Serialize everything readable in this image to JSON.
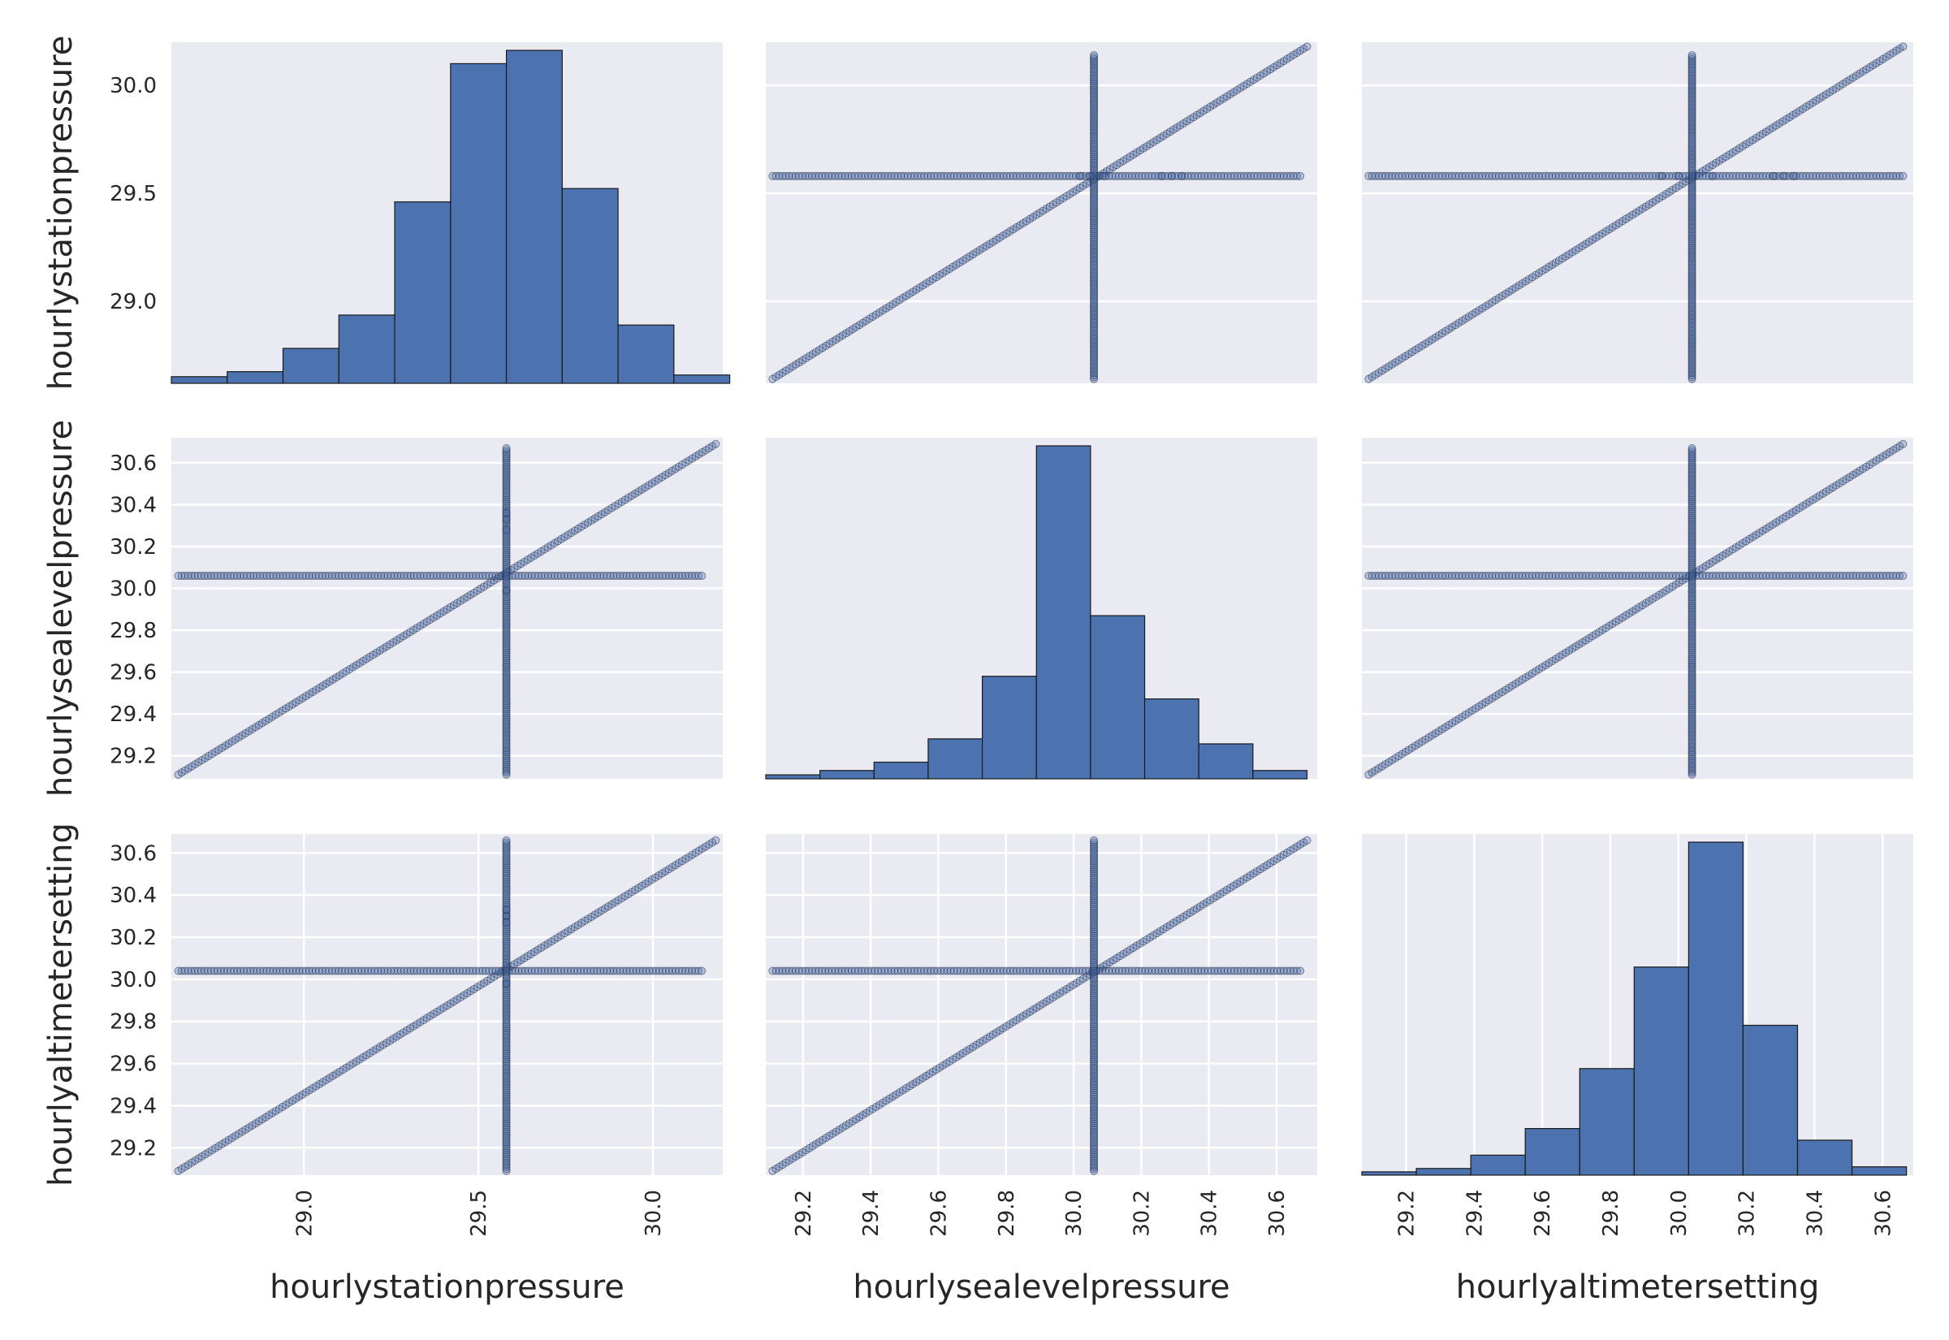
{
  "chart_data": {
    "type": "scatter-matrix",
    "variables": [
      "hourlystationpressure",
      "hourlysealevelpressure",
      "hourlyaltimetersetting"
    ],
    "style": {
      "panel_background": "#EAEAF2",
      "grid_color": "#FFFFFF",
      "bar_color": "#4C72B0",
      "marker_color": "#4C72B0",
      "marker_alpha": 0.3,
      "grid": true
    },
    "axes": {
      "hourlystationpressure": {
        "label": "hourlystationpressure",
        "range": [
          28.62,
          30.2
        ],
        "ticks": [
          29.0,
          29.5,
          30.0
        ],
        "tick_labels": [
          "29.0",
          "29.5",
          "30.0"
        ]
      },
      "hourlysealevelpressure": {
        "label": "hourlysealevelpressure",
        "range": [
          29.09,
          30.72
        ],
        "ticks": [
          29.2,
          29.4,
          29.6,
          29.8,
          30.0,
          30.2,
          30.4,
          30.6
        ],
        "tick_labels": [
          "29.2",
          "29.4",
          "29.6",
          "29.8",
          "30.0",
          "30.2",
          "30.4",
          "30.6"
        ]
      },
      "hourlyaltimetersetting": {
        "label": "hourlyaltimetersetting",
        "range": [
          29.07,
          30.69
        ],
        "ticks": [
          29.2,
          29.4,
          29.6,
          29.8,
          30.0,
          30.2,
          30.4,
          30.6
        ],
        "tick_labels": [
          "29.2",
          "29.4",
          "29.6",
          "29.8",
          "30.0",
          "30.2",
          "30.4",
          "30.6"
        ]
      }
    },
    "histograms": [
      {
        "variable": "hourlystationpressure",
        "bin_edges": [
          28.62,
          28.78,
          28.94,
          29.1,
          29.26,
          29.42,
          29.58,
          29.74,
          29.9,
          30.06,
          30.22
        ],
        "relative_heights": [
          0.02,
          0.035,
          0.105,
          0.205,
          0.545,
          0.96,
          1.0,
          0.585,
          0.175,
          0.025
        ]
      },
      {
        "variable": "hourlysealevelpressure",
        "bin_edges": [
          29.09,
          29.25,
          29.41,
          29.57,
          29.73,
          29.89,
          30.05,
          30.21,
          30.37,
          30.53,
          30.69
        ],
        "relative_heights": [
          0.012,
          0.025,
          0.05,
          0.12,
          0.308,
          1.0,
          0.49,
          0.24,
          0.105,
          0.025
        ]
      },
      {
        "variable": "hourlyaltimetersetting",
        "bin_edges": [
          29.07,
          29.23,
          29.39,
          29.55,
          29.71,
          29.87,
          30.03,
          30.19,
          30.35,
          30.51,
          30.67
        ],
        "relative_heights": [
          0.01,
          0.02,
          0.06,
          0.14,
          0.32,
          0.625,
          1.0,
          0.45,
          0.105,
          0.025
        ]
      }
    ],
    "scatter_features": {
      "diagonal_ranges": {
        "hourlystationpressure": [
          28.64,
          30.18
        ],
        "hourlysealevelpressure": [
          29.11,
          30.69
        ],
        "hourlyaltimetersetting": [
          29.09,
          30.66
        ]
      },
      "fill_values": {
        "hourlystationpressure": 29.58,
        "hourlysealevelpressure": 30.06,
        "hourlyaltimetersetting": 30.04
      },
      "fill_line_extent": {
        "hourlystationpressure": [
          28.64,
          30.14
        ],
        "hourlysealevelpressure": [
          29.11,
          30.67
        ],
        "hourlyaltimetersetting": [
          29.09,
          30.66
        ]
      },
      "isolated_points": [
        {
          "x_var": "hourlystationpressure",
          "y_var": "hourlysealevelpressure",
          "x": 29.58,
          "y": [
            30.36,
            30.33,
            30.28,
            29.99
          ]
        },
        {
          "x_var": "hourlystationpressure",
          "y_var": "hourlyaltimetersetting",
          "x": 29.58,
          "y": [
            30.33,
            30.3,
            30.27,
            29.98
          ]
        },
        {
          "x_var": "hourlysealevelpressure",
          "y_var": "hourlystationpressure",
          "x": [
            30.02,
            30.05,
            30.09,
            30.26,
            30.29,
            30.32
          ],
          "y": 29.58
        },
        {
          "x_var": "hourlyaltimetersetting",
          "y_var": "hourlystationpressure",
          "x": [
            29.95,
            30.0,
            30.1,
            30.28,
            30.31,
            30.34
          ],
          "y": 29.58
        }
      ]
    }
  }
}
